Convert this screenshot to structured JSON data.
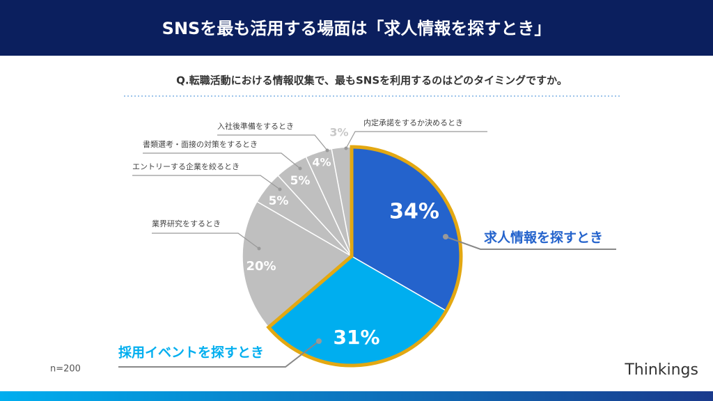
{
  "chart_data": {
    "type": "pie",
    "title": "SNSを最も活用する場面は「求人情報を探すとき」",
    "subtitle": "Q.転職活動における情報収集で、最もSNSを利用するのはどのタイミングですか。",
    "categories": [
      "求人情報を探すとき",
      "採用イベントを探すとき",
      "業界研究をするとき",
      "エントリーする企業を絞るとき",
      "書類選考・面接の対策をするとき",
      "入社後準備をするとき",
      "内定承諾をするか決めるとき"
    ],
    "values": [
      34,
      31,
      20,
      5,
      5,
      4,
      3
    ],
    "value_labels": [
      "34%",
      "31%",
      "20%",
      "5%",
      "5%",
      "4%",
      "3%"
    ],
    "colors": [
      "#2463cc",
      "#00aeef",
      "#bfbfbf",
      "#bfbfbf",
      "#bfbfbf",
      "#bfbfbf",
      "#bfbfbf"
    ],
    "note": "n=200",
    "brand": "Thinkings"
  }
}
